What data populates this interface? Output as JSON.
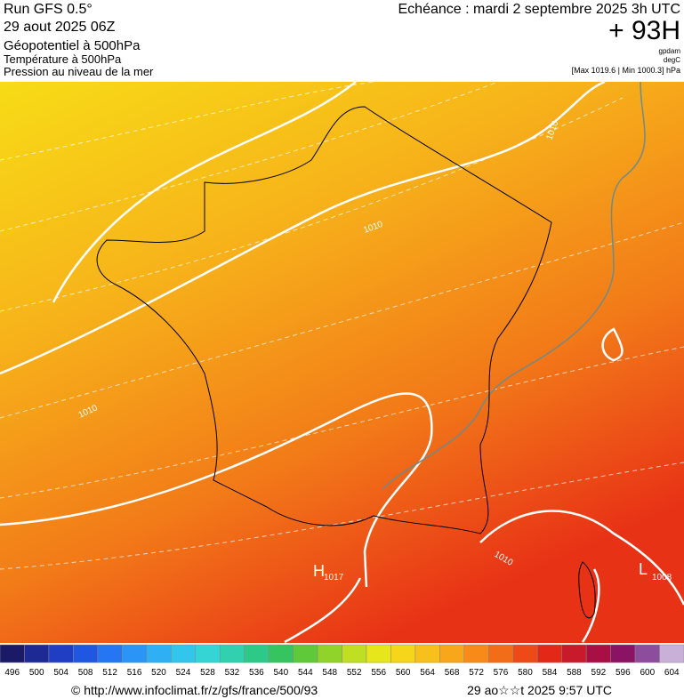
{
  "header": {
    "run": "Run GFS 0.5°",
    "date": "29 aout 2025 06Z",
    "field1": "Géopotentiel à 500hPa",
    "field2": "Température à 500hPa",
    "field3": "Pression au niveau de la mer",
    "valid": "Echéance : mardi 2 septembre 2025 3h UTC",
    "lead": "+ 93H",
    "unit1": "gpdam",
    "unit2": "degC",
    "range": "[Max 1019.6 | Min 1000.3] hPa"
  },
  "map": {
    "labels": [
      "1010",
      "1010",
      "1010",
      "1010",
      "H",
      "1017",
      "L",
      "1008"
    ]
  },
  "colorbar": {
    "ticks": [
      496,
      500,
      504,
      508,
      512,
      516,
      520,
      524,
      528,
      532,
      536,
      540,
      544,
      548,
      552,
      556,
      560,
      564,
      568,
      572,
      576,
      580,
      584,
      588,
      592,
      596,
      600,
      604
    ],
    "colors": [
      "#1a1a66",
      "#1d2a94",
      "#1f3ec4",
      "#2057e2",
      "#2476f2",
      "#2a94f7",
      "#2fb0f4",
      "#33c6ec",
      "#35d5d6",
      "#31d0ae",
      "#2ec889",
      "#35c460",
      "#5fc93a",
      "#90d42a",
      "#c0de22",
      "#e6e61a",
      "#f6d61a",
      "#f8c01a",
      "#f8a61a",
      "#f78a19",
      "#f36c18",
      "#ee4a17",
      "#e42817",
      "#c91a2c",
      "#a80f44",
      "#8a1364",
      "#8e4c9c",
      "#c9b0d8"
    ]
  },
  "footer": {
    "source": "© http://www.infoclimat.fr/z/gfs/france/500/93",
    "stamp": "29 ao☆☆t 2025  9:57 UTC"
  }
}
